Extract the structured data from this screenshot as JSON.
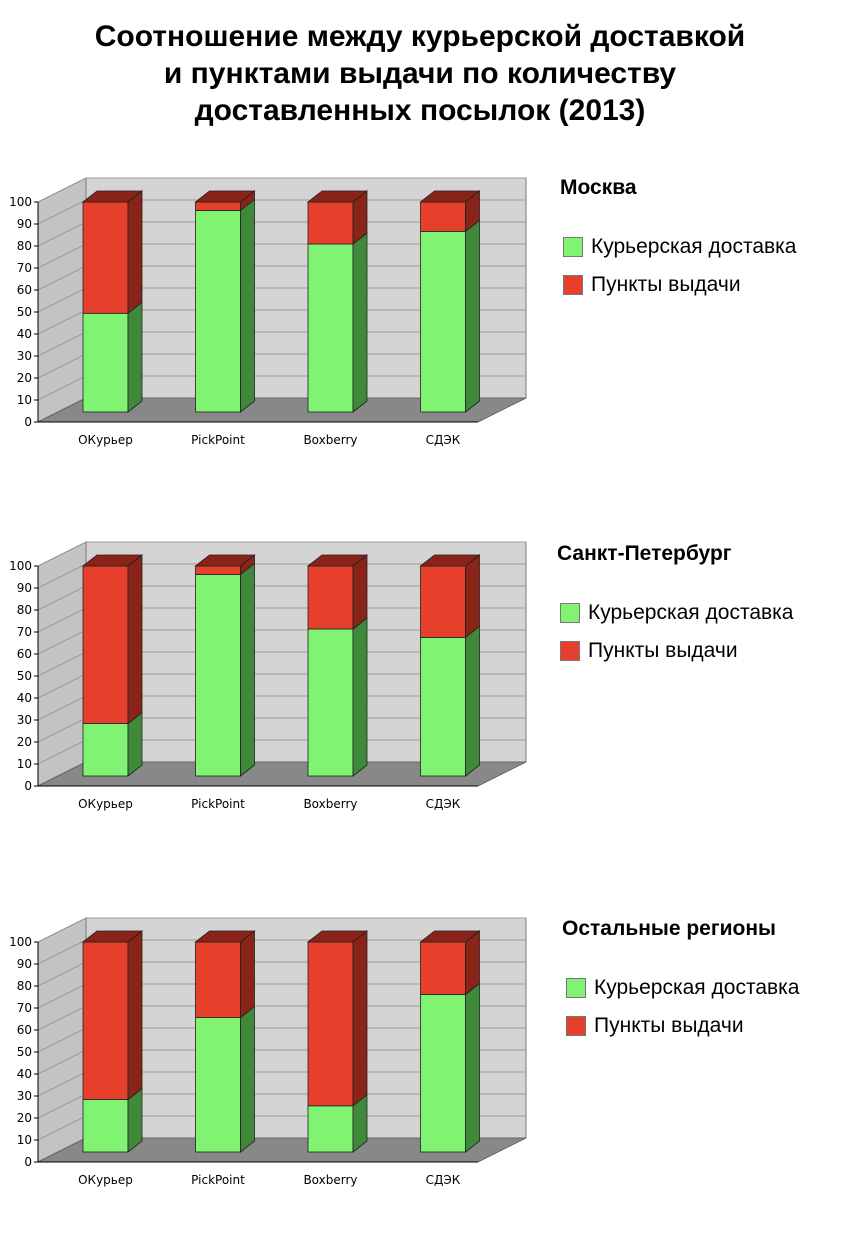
{
  "title_lines": [
    "Соотношение между курьерской доставкой",
    "и пунктами выдачи по количеству",
    "доставленных посылок (2013)"
  ],
  "colors": {
    "courier": "#80f472",
    "courier_side": "#3e8a3a",
    "pickup": "#e6402c",
    "pickup_side": "#8a2318",
    "wall": "#d4d4d4",
    "floor": "#888888",
    "grid": "#9c9c9c"
  },
  "legend": {
    "courier": "Курьерская доставка",
    "pickup": "Пункты выдачи"
  },
  "chart_data": [
    {
      "type": "bar",
      "stacked": true,
      "title": "Москва",
      "categories": [
        "ОКурьер",
        "PickPoint",
        "Boxberry",
        "СДЭК"
      ],
      "series": [
        {
          "name": "Курьерская доставка",
          "values": [
            47,
            96,
            80,
            86
          ]
        },
        {
          "name": "Пункты выдачи",
          "values": [
            53,
            4,
            20,
            14
          ]
        }
      ],
      "yticks": [
        0,
        10,
        20,
        30,
        40,
        50,
        60,
        70,
        80,
        90,
        100
      ],
      "ylim": [
        0,
        100
      ]
    },
    {
      "type": "bar",
      "stacked": true,
      "title": "Санкт-Петербург",
      "categories": [
        "ОКурьер",
        "PickPoint",
        "Boxberry",
        "СДЭК"
      ],
      "series": [
        {
          "name": "Курьерская доставка",
          "values": [
            25,
            96,
            70,
            66
          ]
        },
        {
          "name": "Пункты выдачи",
          "values": [
            75,
            4,
            30,
            34
          ]
        }
      ],
      "yticks": [
        0,
        10,
        20,
        30,
        40,
        50,
        60,
        70,
        80,
        90,
        100
      ],
      "ylim": [
        0,
        100
      ]
    },
    {
      "type": "bar",
      "stacked": true,
      "title": "Остальные регионы",
      "categories": [
        "ОКурьер",
        "PickPoint",
        "Boxberry",
        "СДЭК"
      ],
      "series": [
        {
          "name": "Курьерская доставка",
          "values": [
            25,
            64,
            22,
            75
          ]
        },
        {
          "name": "Пункты выдачи",
          "values": [
            75,
            36,
            78,
            25
          ]
        }
      ],
      "yticks": [
        0,
        10,
        20,
        30,
        40,
        50,
        60,
        70,
        80,
        90,
        100
      ],
      "ylim": [
        0,
        100
      ]
    }
  ]
}
